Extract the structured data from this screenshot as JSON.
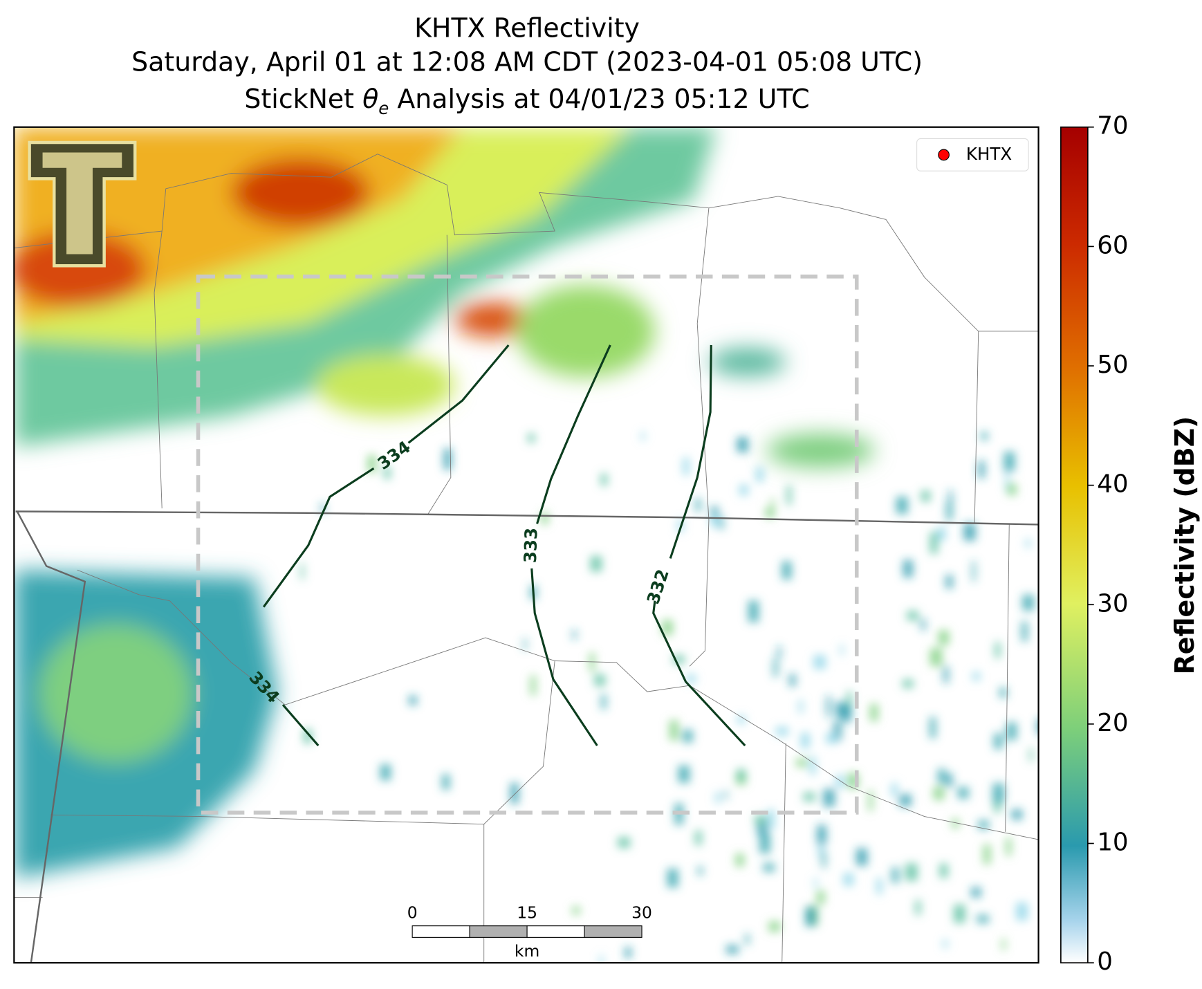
{
  "title": {
    "line1": "KHTX Reflectivity",
    "line2": "Saturday, April 01 at 12:08 AM CDT (2023-04-01 05:08 UTC)",
    "line3": {
      "prefix": "StickNet",
      "symbol": "θ",
      "subscript": "e",
      "suffix": "Analysis at 04/01/23 05:12 UTC"
    }
  },
  "legend": {
    "label": "KHTX",
    "color": "#ff0000"
  },
  "colorbar": {
    "label": "Reflectivity (dBZ)",
    "lim": [
      0,
      70
    ],
    "ticks": [
      0,
      10,
      20,
      30,
      40,
      50,
      60,
      70
    ]
  },
  "contour_labels": [
    334,
    333,
    332,
    334
  ],
  "scale_bar": {
    "ticks": [
      0,
      15,
      30
    ],
    "unit": "km"
  }
}
